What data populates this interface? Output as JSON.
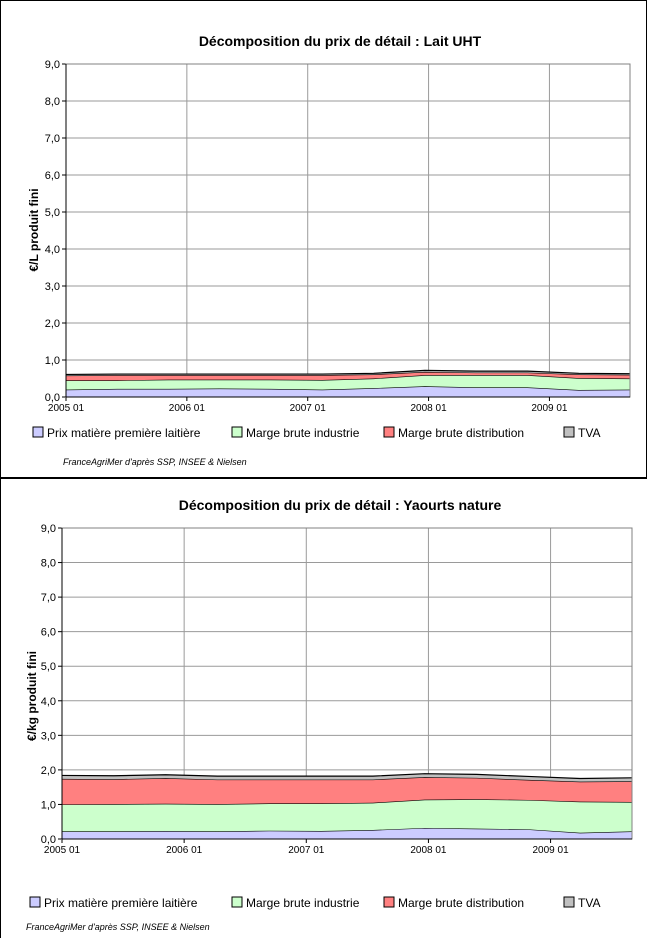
{
  "chart_data": [
    {
      "type": "area",
      "title": "Décomposition du prix de détail : Lait UHT",
      "ylabel": "€/L produit fini",
      "xlabel": "",
      "ylim": [
        0,
        9
      ],
      "yticks": [
        "0,0",
        "1,0",
        "2,0",
        "3,0",
        "4,0",
        "5,0",
        "6,0",
        "7,0",
        "8,0",
        "9,0"
      ],
      "xticks": [
        "2005 01",
        "2006 01",
        "2007 01",
        "2008 01",
        "2009 01"
      ],
      "x_start": "2005-01",
      "x_end": "2009-09",
      "stacked": true,
      "grid": true,
      "legend_position": "bottom",
      "source": "FranceAgriMer d'après SSP, INSEE & Nielsen",
      "series": [
        {
          "name": "Prix matière première laitière",
          "color": "#ccccff",
          "values": [
            0.2,
            0.22,
            0.22,
            0.23,
            0.22,
            0.2,
            0.24,
            0.29,
            0.26,
            0.26,
            0.19,
            0.2
          ]
        },
        {
          "name": "Marge brute industrie",
          "color": "#ccffcc",
          "values": [
            0.25,
            0.23,
            0.25,
            0.24,
            0.25,
            0.26,
            0.26,
            0.3,
            0.33,
            0.33,
            0.32,
            0.3
          ]
        },
        {
          "name": "Marge brute distribution",
          "color": "#ff8080",
          "values": [
            0.13,
            0.14,
            0.12,
            0.12,
            0.12,
            0.13,
            0.11,
            0.09,
            0.07,
            0.07,
            0.1,
            0.1
          ]
        },
        {
          "name": "TVA",
          "color": "#c0c0c0",
          "values": [
            0.03,
            0.03,
            0.03,
            0.03,
            0.03,
            0.03,
            0.03,
            0.04,
            0.04,
            0.04,
            0.03,
            0.03
          ]
        }
      ]
    },
    {
      "type": "area",
      "title": "Décomposition du prix de détail : Yaourts nature",
      "ylabel": "€/kg produit fini",
      "xlabel": "",
      "ylim": [
        0,
        9
      ],
      "yticks": [
        "0,0",
        "1,0",
        "2,0",
        "3,0",
        "4,0",
        "5,0",
        "6,0",
        "7,0",
        "8,0",
        "9,0"
      ],
      "xticks": [
        "2005 01",
        "2006 01",
        "2007 01",
        "2008 01",
        "2009 01"
      ],
      "x_start": "2005-01",
      "x_end": "2009-09",
      "stacked": true,
      "grid": true,
      "legend_position": "bottom",
      "source": "FranceAgriMer d'après SSP, INSEE & Nielsen",
      "series": [
        {
          "name": "Prix matière première laitière",
          "color": "#ccccff",
          "values": [
            0.22,
            0.22,
            0.23,
            0.22,
            0.24,
            0.23,
            0.26,
            0.32,
            0.3,
            0.28,
            0.18,
            0.22
          ]
        },
        {
          "name": "Marge brute industrie",
          "color": "#ccffcc",
          "values": [
            0.78,
            0.79,
            0.79,
            0.79,
            0.79,
            0.8,
            0.79,
            0.82,
            0.85,
            0.85,
            0.9,
            0.85
          ]
        },
        {
          "name": "Marge brute distribution",
          "color": "#ff8080",
          "values": [
            0.74,
            0.72,
            0.74,
            0.71,
            0.69,
            0.69,
            0.67,
            0.65,
            0.62,
            0.58,
            0.58,
            0.6
          ]
        },
        {
          "name": "TVA",
          "color": "#c0c0c0",
          "values": [
            0.1,
            0.1,
            0.1,
            0.1,
            0.1,
            0.1,
            0.1,
            0.1,
            0.1,
            0.1,
            0.09,
            0.1
          ]
        }
      ]
    }
  ]
}
